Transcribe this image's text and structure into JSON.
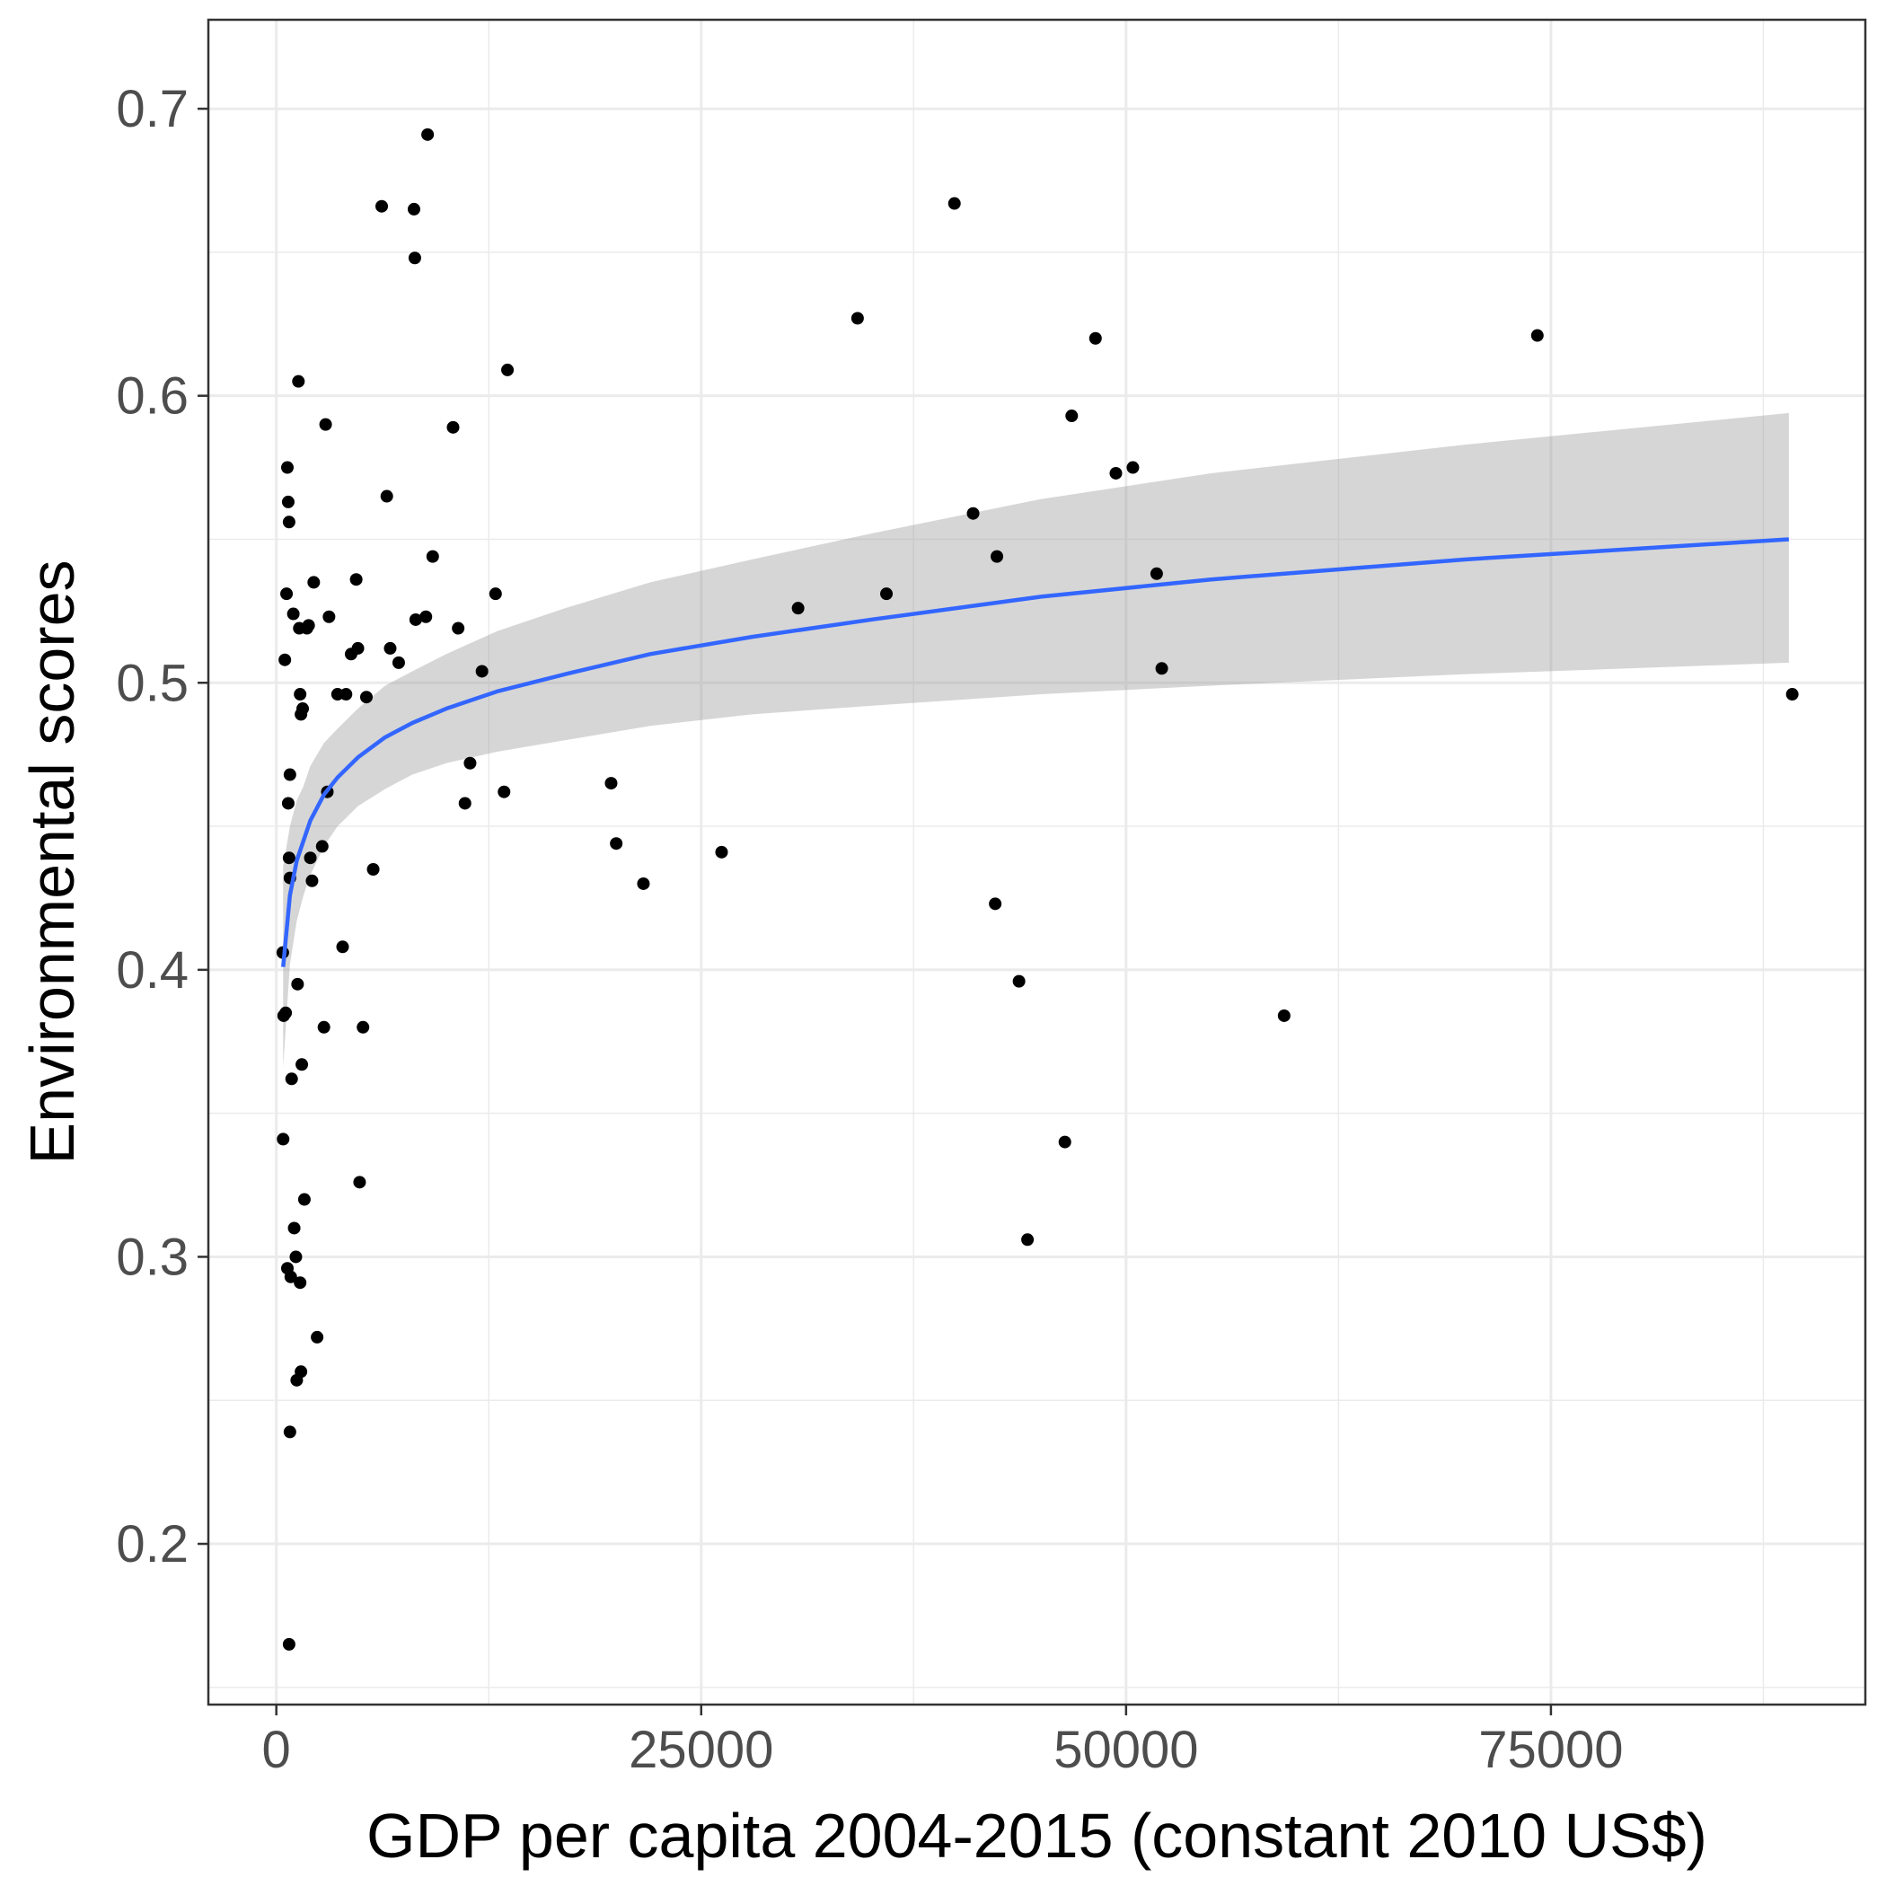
{
  "chart_data": {
    "type": "scatter",
    "xlabel": "GDP per capita 2004-2015 (constant 2010 US$)",
    "ylabel": "Environmental scores",
    "xlim": [
      -4000,
      93500
    ],
    "ylim": [
      0.144,
      0.731
    ],
    "x_ticks": [
      0,
      25000,
      50000,
      75000
    ],
    "y_ticks": [
      0.2,
      0.3,
      0.4,
      0.5,
      0.6,
      0.7
    ],
    "x_tick_labels": [
      "0",
      "25000",
      "50000",
      "75000"
    ],
    "y_tick_labels": [
      "0.2",
      "0.3",
      "0.4",
      "0.5",
      "0.6",
      "0.7"
    ],
    "grid": true,
    "colors": {
      "points": "#000000",
      "smooth_line": "#3366ff",
      "ribbon": "#999999",
      "grid": "#ebebeb",
      "panel_border": "#333333"
    },
    "points": [
      [
        380,
        0.406
      ],
      [
        430,
        0.384
      ],
      [
        550,
        0.385
      ],
      [
        400,
        0.341
      ],
      [
        600,
        0.531
      ],
      [
        500,
        0.508
      ],
      [
        650,
        0.575
      ],
      [
        700,
        0.563
      ],
      [
        750,
        0.556
      ],
      [
        800,
        0.468
      ],
      [
        700,
        0.458
      ],
      [
        750,
        0.439
      ],
      [
        800,
        0.432
      ],
      [
        900,
        0.362
      ],
      [
        650,
        0.296
      ],
      [
        850,
        0.293
      ],
      [
        800,
        0.239
      ],
      [
        750,
        0.165
      ],
      [
        1000,
        0.524
      ],
      [
        1050,
        0.31
      ],
      [
        1150,
        0.3
      ],
      [
        1200,
        0.257
      ],
      [
        1250,
        0.395
      ],
      [
        1300,
        0.605
      ],
      [
        1350,
        0.519
      ],
      [
        1400,
        0.496
      ],
      [
        1450,
        0.489
      ],
      [
        1500,
        0.367
      ],
      [
        1400,
        0.291
      ],
      [
        1450,
        0.26
      ],
      [
        1550,
        0.491
      ],
      [
        1650,
        0.32
      ],
      [
        1800,
        0.519
      ],
      [
        1900,
        0.52
      ],
      [
        2000,
        0.439
      ],
      [
        2100,
        0.431
      ],
      [
        2200,
        0.535
      ],
      [
        2400,
        0.272
      ],
      [
        2700,
        0.443
      ],
      [
        2800,
        0.38
      ],
      [
        2900,
        0.59
      ],
      [
        3000,
        0.462
      ],
      [
        3100,
        0.523
      ],
      [
        3600,
        0.496
      ],
      [
        3900,
        0.408
      ],
      [
        4100,
        0.496
      ],
      [
        4400,
        0.51
      ],
      [
        4700,
        0.536
      ],
      [
        4800,
        0.512
      ],
      [
        4900,
        0.326
      ],
      [
        5100,
        0.38
      ],
      [
        5300,
        0.495
      ],
      [
        5700,
        0.435
      ],
      [
        6200,
        0.666
      ],
      [
        6500,
        0.565
      ],
      [
        6700,
        0.512
      ],
      [
        7200,
        0.507
      ],
      [
        8100,
        0.665
      ],
      [
        8150,
        0.648
      ],
      [
        8200,
        0.522
      ],
      [
        8800,
        0.523
      ],
      [
        8900,
        0.691
      ],
      [
        9200,
        0.544
      ],
      [
        10400,
        0.589
      ],
      [
        10700,
        0.519
      ],
      [
        11100,
        0.458
      ],
      [
        11400,
        0.472
      ],
      [
        12100,
        0.504
      ],
      [
        12900,
        0.531
      ],
      [
        13400,
        0.462
      ],
      [
        13600,
        0.609
      ],
      [
        19700,
        0.465
      ],
      [
        20000,
        0.444
      ],
      [
        21600,
        0.43
      ],
      [
        26200,
        0.441
      ],
      [
        30700,
        0.526
      ],
      [
        34200,
        0.627
      ],
      [
        35900,
        0.531
      ],
      [
        39900,
        0.667
      ],
      [
        41000,
        0.559
      ],
      [
        42300,
        0.423
      ],
      [
        42400,
        0.544
      ],
      [
        43700,
        0.396
      ],
      [
        44200,
        0.306
      ],
      [
        46400,
        0.34
      ],
      [
        46800,
        0.593
      ],
      [
        48200,
        0.62
      ],
      [
        49400,
        0.573
      ],
      [
        50400,
        0.575
      ],
      [
        51800,
        0.538
      ],
      [
        52100,
        0.505
      ],
      [
        59300,
        0.384
      ],
      [
        74200,
        0.621
      ],
      [
        89200,
        0.496
      ]
    ],
    "smooth": {
      "x": [
        400,
        800,
        1200,
        1600,
        2000,
        2800,
        3600,
        4800,
        6400,
        8000,
        10000,
        13000,
        17000,
        22000,
        28000,
        35000,
        45000,
        55000,
        70000,
        89000
      ],
      "y": [
        0.401,
        0.426,
        0.438,
        0.445,
        0.452,
        0.461,
        0.467,
        0.474,
        0.481,
        0.486,
        0.491,
        0.497,
        0.503,
        0.51,
        0.516,
        0.522,
        0.53,
        0.536,
        0.543,
        0.55
      ],
      "lower": [
        0.366,
        0.402,
        0.417,
        0.426,
        0.433,
        0.443,
        0.45,
        0.457,
        0.463,
        0.468,
        0.472,
        0.476,
        0.48,
        0.485,
        0.489,
        0.492,
        0.496,
        0.499,
        0.503,
        0.507
      ],
      "upper": [
        0.436,
        0.45,
        0.459,
        0.464,
        0.471,
        0.479,
        0.484,
        0.491,
        0.499,
        0.504,
        0.51,
        0.518,
        0.526,
        0.535,
        0.543,
        0.552,
        0.564,
        0.573,
        0.583,
        0.594
      ]
    }
  }
}
